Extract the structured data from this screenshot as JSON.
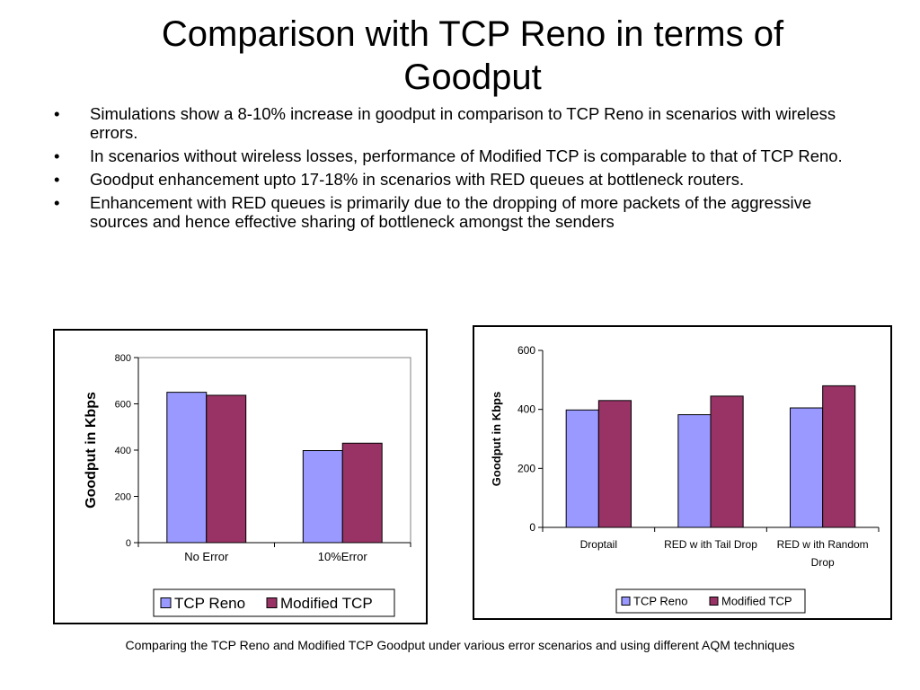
{
  "title": "Comparison with TCP Reno in terms of Goodput",
  "bullets": [
    "Simulations show a 8-10% increase in goodput in comparison to TCP Reno in scenarios with wireless errors.",
    "In scenarios without wireless losses, performance of Modified TCP is comparable to that of TCP Reno.",
    "Goodput enhancement upto 17-18% in scenarios with RED queues at bottleneck routers.",
    "Enhancement with RED queues is primarily due to the dropping of more packets of the aggressive sources and hence effective sharing of bottleneck amongst the senders"
  ],
  "caption": "Comparing the TCP Reno and Modified TCP Goodput under various error scenarios and using different AQM techniques",
  "colors": {
    "tcp_reno": "#9999ff",
    "modified_tcp": "#993366"
  },
  "chart_data": [
    {
      "type": "bar",
      "categories": [
        "No Error",
        "10%Error"
      ],
      "series": [
        {
          "name": "TCP Reno",
          "values": [
            650,
            398
          ]
        },
        {
          "name": "Modified TCP",
          "values": [
            637,
            430
          ]
        }
      ],
      "title": "",
      "xlabel": "",
      "ylabel": "Goodput in Kbps",
      "ylim": [
        0,
        800
      ],
      "yticks": [
        0,
        200,
        400,
        600,
        800
      ],
      "grid": false,
      "legend": "bottom"
    },
    {
      "type": "bar",
      "categories": [
        "Droptail",
        "RED with Tail Drop",
        "RED with Random Drop"
      ],
      "category_labels_display": [
        [
          "Droptail"
        ],
        [
          "RED w ith Tail Drop"
        ],
        [
          "RED w ith Random",
          "Drop"
        ]
      ],
      "series": [
        {
          "name": "TCP Reno",
          "values": [
            398,
            382,
            405
          ]
        },
        {
          "name": "Modified TCP",
          "values": [
            430,
            445,
            480
          ]
        }
      ],
      "title": "",
      "xlabel": "",
      "ylabel": "Goodput in Kbps",
      "ylim": [
        0,
        600
      ],
      "yticks": [
        0,
        200,
        400,
        600
      ],
      "grid": false,
      "legend": "bottom"
    }
  ]
}
